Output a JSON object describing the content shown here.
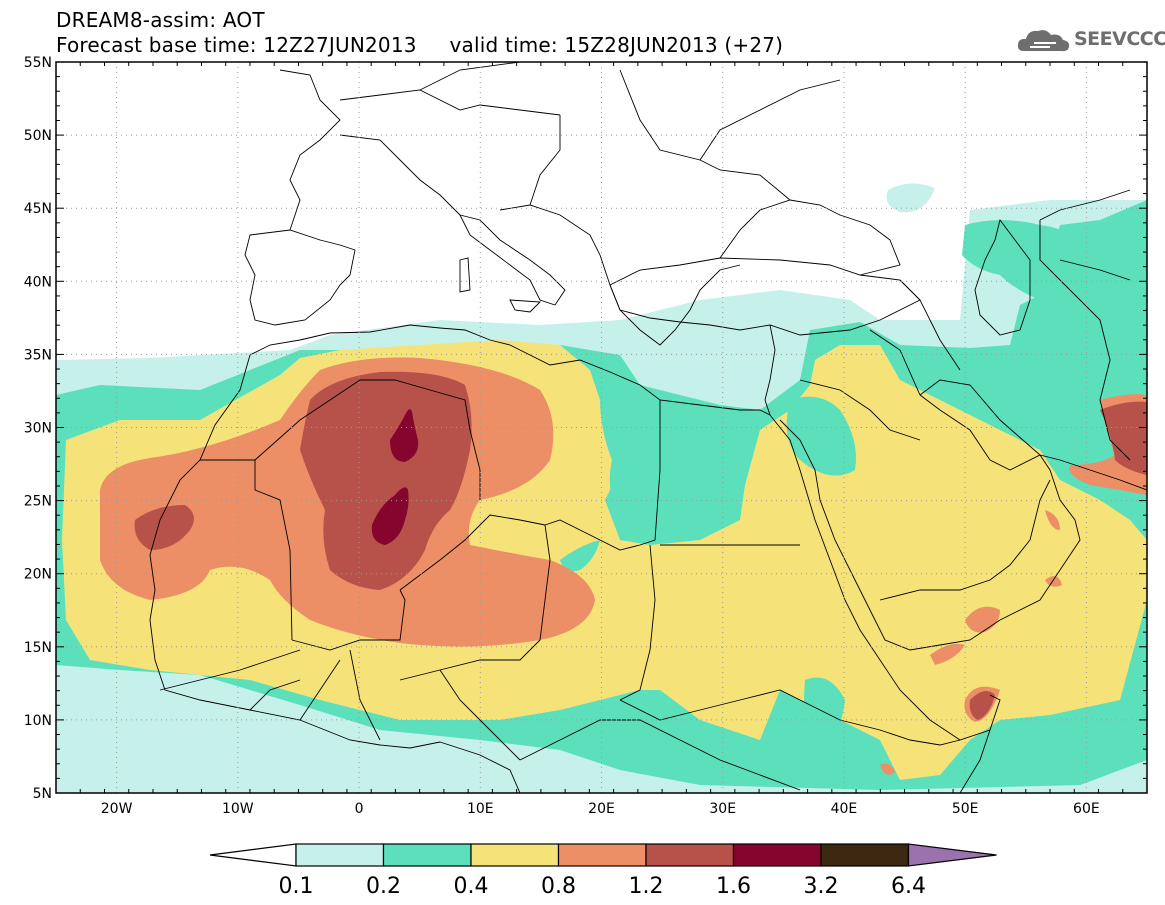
{
  "header": {
    "title_line1": "DREAM8-assim: AOT",
    "title_line2": "Forecast base time: 12Z27JUN2013     valid time: 15Z28JUN2013 (+27)"
  },
  "logo": {
    "text": "SEEVCCC",
    "icon": "cloud-icon"
  },
  "map": {
    "projection": "lat-lon",
    "lon_range": [
      -25,
      65
    ],
    "lat_range": [
      5,
      55
    ],
    "lat_ticks": [
      {
        "value": 55,
        "label": "55N"
      },
      {
        "value": 50,
        "label": "50N"
      },
      {
        "value": 45,
        "label": "45N"
      },
      {
        "value": 40,
        "label": "40N"
      },
      {
        "value": 35,
        "label": "35N"
      },
      {
        "value": 30,
        "label": "30N"
      },
      {
        "value": 25,
        "label": "25N"
      },
      {
        "value": 20,
        "label": "20N"
      },
      {
        "value": 15,
        "label": "15N"
      },
      {
        "value": 10,
        "label": "10N"
      },
      {
        "value": 5,
        "label": "5N"
      }
    ],
    "lon_ticks": [
      {
        "value": -20,
        "label": "20W"
      },
      {
        "value": -10,
        "label": "10W"
      },
      {
        "value": 0,
        "label": "0"
      },
      {
        "value": 10,
        "label": "10E"
      },
      {
        "value": 20,
        "label": "20E"
      },
      {
        "value": 30,
        "label": "30E"
      },
      {
        "value": 40,
        "label": "40E"
      },
      {
        "value": 50,
        "label": "50E"
      },
      {
        "value": 60,
        "label": "60E"
      }
    ],
    "grid": true,
    "colors": {
      "c01": "#c6f0ea",
      "c02": "#5ce0bc",
      "c04": "#f5e37a",
      "c08": "#ec8e66",
      "c12": "#b6524a",
      "c16": "#85052e",
      "c32": "#3d2812",
      "c64": "#9c72ae"
    }
  },
  "colorbar": {
    "labels": [
      "0.1",
      "0.2",
      "0.4",
      "0.8",
      "1.2",
      "1.6",
      "3.2",
      "6.4"
    ],
    "colors": [
      "#c6f0ea",
      "#5ce0bc",
      "#f5e37a",
      "#ec8e66",
      "#b6524a",
      "#85052e",
      "#3d2812"
    ],
    "under_color": "#ffffff",
    "over_color": "#9c72ae"
  }
}
